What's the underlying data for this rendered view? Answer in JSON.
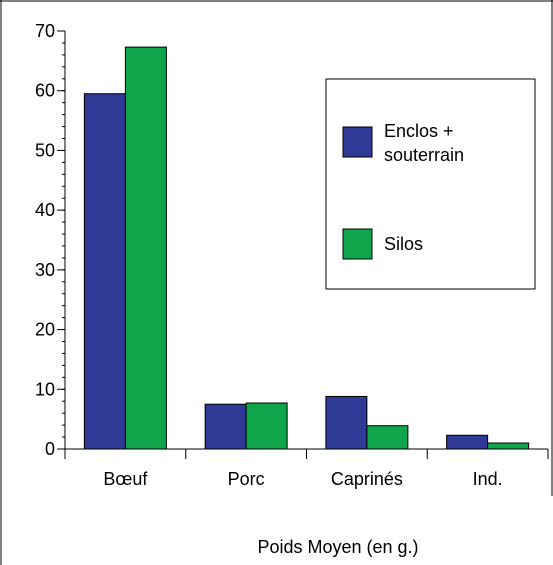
{
  "chart_data": {
    "type": "bar",
    "categories": [
      "Bœuf",
      "Porc",
      "Caprinés",
      "Ind."
    ],
    "series": [
      {
        "name": "Enclos + souterrain",
        "name_lines": [
          "Enclos +",
          "souterrain"
        ],
        "color": "#2e3a96",
        "values": [
          59.5,
          7.5,
          8.8,
          2.3
        ]
      },
      {
        "name": "Silos",
        "name_lines": [
          "Silos"
        ],
        "color": "#0fa64b",
        "values": [
          67.3,
          7.7,
          3.9,
          1.0
        ]
      }
    ],
    "xlabel": "Poids Moyen (en g.)",
    "ylabel": "",
    "ylim": [
      0,
      70
    ],
    "yticks": [
      0,
      10,
      20,
      30,
      40,
      50,
      60,
      70
    ],
    "minor_ticks_per_major": 5,
    "grid": false,
    "legend_position": "top-right"
  }
}
